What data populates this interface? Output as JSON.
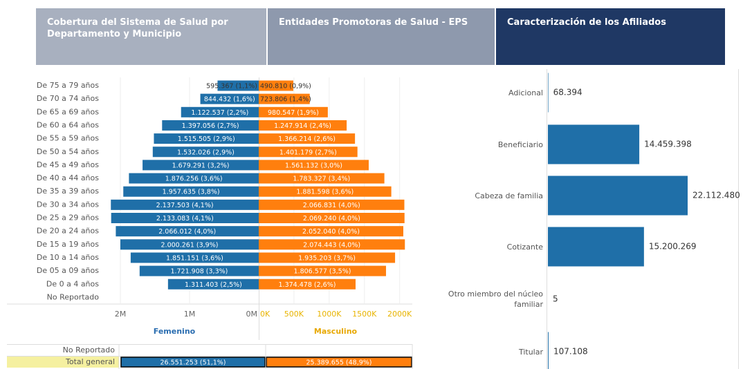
{
  "tabs": [
    "Cobertura del Sistema de Salud  por Departamento y Municipio",
    "Entidades Promotoras de Salud - EPS",
    "Caracterización de los Afiliados"
  ],
  "chart_data": [
    {
      "type": "pyramid",
      "categories": [
        "De 75 a 79 años",
        "De 70 a 74 años",
        "De 65 a 69 años",
        "De 60 a 64 años",
        "De 55 a 59 años",
        "De 50 a 54 años",
        "De 45 a 49 años",
        "De 40 a 44 años",
        "De 35 a 39 años",
        "De 30 a 34 años",
        "De 25 a 29 años",
        "De 20 a 24 años",
        "De 15 a 19 años",
        "De 10 a 14 años",
        "De 05 a 09 años",
        "De 0 a 4 años",
        "No Reportado"
      ],
      "series": [
        {
          "name": "Femenino",
          "color": "#1f6fa8",
          "title_color": "#2a6db0",
          "tick_color": "#666666",
          "xlim": [
            0,
            2240000
          ],
          "xticks": [
            {
              "value": 2000000,
              "label": "2M"
            },
            {
              "value": 1000000,
              "label": "1M"
            },
            {
              "value": 0,
              "label": "0M"
            }
          ],
          "values": [
            595367,
            844432,
            1122537,
            1397056,
            1515505,
            1532026,
            1679291,
            1876256,
            1957635,
            2137503,
            2133083,
            2066012,
            2000261,
            1851151,
            1721908,
            1311403,
            null
          ],
          "value_labels": [
            "595.367 (1,1%)",
            "844.432 (1,6%)",
            "1.122.537 (2,2%)",
            "1.397.056 (2,7%)",
            "1.515.505 (2,9%)",
            "1.532.026 (2,9%)",
            "1.679.291 (3,2%)",
            "1.876.256 (3,6%)",
            "1.957.635 (3,8%)",
            "2.137.503 (4,1%)",
            "2.133.083 (4,1%)",
            "2.066.012 (4,0%)",
            "2.000.261 (3,9%)",
            "1.851.151 (3,6%)",
            "1.721.908 (3,3%)",
            "1.311.403 (2,5%)",
            null
          ]
        },
        {
          "name": "Masculino",
          "color": "#ff7f0e",
          "title_color": "#e8a800",
          "tick_color": "#e8b400",
          "xlim": [
            0,
            2180000
          ],
          "xticks": [
            {
              "value": 0,
              "label": "0K"
            },
            {
              "value": 500000,
              "label": "500K"
            },
            {
              "value": 1000000,
              "label": "1000K"
            },
            {
              "value": 1500000,
              "label": "1500K"
            },
            {
              "value": 2000000,
              "label": "2000K"
            }
          ],
          "values": [
            490810,
            723806,
            980547,
            1247914,
            1366214,
            1401179,
            1561132,
            1783327,
            1881598,
            2066831,
            2069240,
            2052040,
            2074443,
            1935203,
            1806577,
            1374478,
            null
          ],
          "value_labels": [
            "490.810 (0,9%)",
            "723.806 (1,4%)",
            "980.547 (1,9%)",
            "1.247.914 (2,4%)",
            "1.366.214 (2,6%)",
            "1.401.179 (2,7%)",
            "1.561.132 (3,0%)",
            "1.783.327 (3,4%)",
            "1.881.598 (3,6%)",
            "2.066.831 (4,0%)",
            "2.069.240 (4,0%)",
            "2.052.040 (4,0%)",
            "2.074.443 (4,0%)",
            "1.935.203 (3,7%)",
            "1.806.577 (3,5%)",
            "1.374.478 (2,6%)",
            null
          ]
        }
      ]
    },
    {
      "type": "table",
      "rows": [
        {
          "label": "No Reportado",
          "values": [
            null,
            null
          ],
          "value_labels": [
            null,
            null
          ]
        },
        {
          "label": "Total general",
          "values": [
            26551253,
            25389655
          ],
          "value_labels": [
            "26.551.253 (51,1%)",
            "25.389.655 (48,9%)"
          ]
        }
      ]
    },
    {
      "type": "hbar",
      "color": "#1f6fa8",
      "categories": [
        "Adicional",
        "Beneficiario",
        "Cabeza de familia",
        "Cotizante",
        "Otro miembro del núcleo familiar",
        "Titular"
      ],
      "values": [
        68394,
        14459398,
        22112480,
        15200269,
        5,
        107108
      ],
      "value_labels": [
        "68.394",
        "14.459.398",
        "22.112.480",
        "15.200.269",
        "5",
        "107.108"
      ]
    }
  ]
}
